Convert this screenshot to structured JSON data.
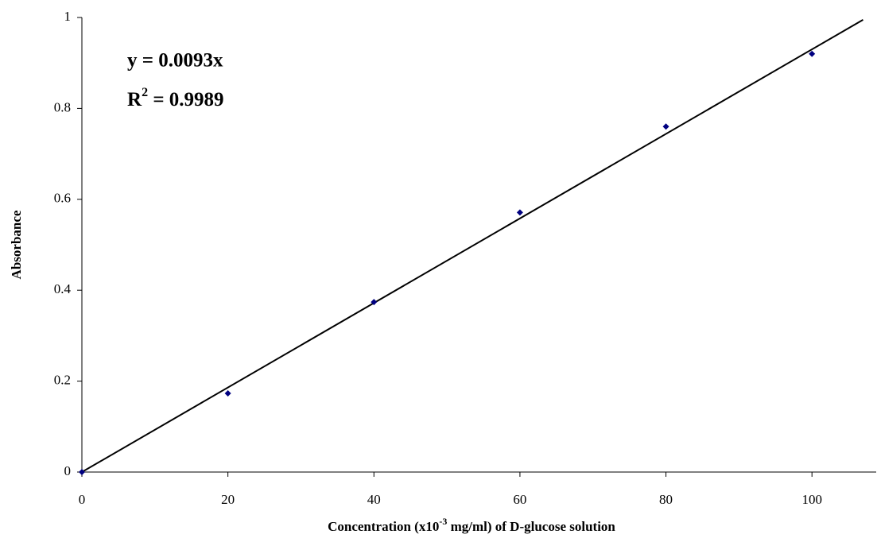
{
  "chart_data": {
    "type": "scatter",
    "x_label": {
      "before": "Concentration (x10",
      "sup": "-3",
      "after": " mg/ml) of D-glucose solution"
    },
    "y_label": "Absorbance",
    "equation": "y = 0.0093x",
    "r_squared": {
      "before": "R",
      "sup": "2",
      "after": " = 0.9989"
    },
    "x": [
      0,
      20,
      40,
      60,
      80,
      100
    ],
    "values": [
      0,
      0.173,
      0.374,
      0.571,
      0.76,
      0.92
    ],
    "color": "#000080",
    "trendline": {
      "x": [
        0,
        107
      ],
      "values": [
        0,
        0.995
      ],
      "color": "#000000"
    },
    "xlim": [
      0,
      108.8
    ],
    "ylim": [
      0,
      1
    ],
    "xticks": [
      0,
      20,
      40,
      60,
      80,
      100
    ],
    "yticks": [
      0,
      0.2,
      0.4,
      0.6,
      0.8,
      1
    ],
    "grid": false
  }
}
